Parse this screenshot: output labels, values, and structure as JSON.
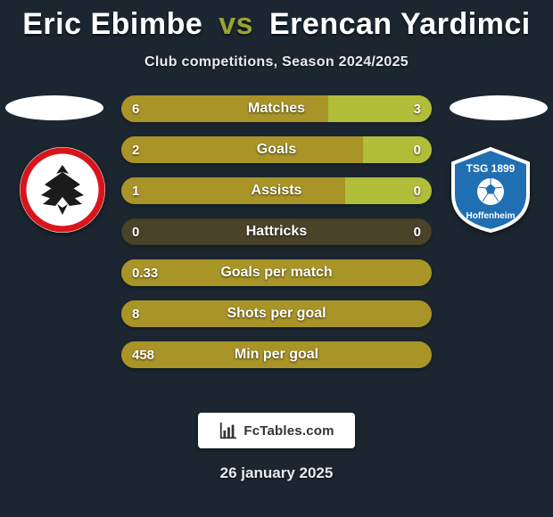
{
  "title": {
    "player1": "Eric Ebimbe",
    "vs": "vs",
    "player2": "Erencan Yardimci"
  },
  "subtitle": "Club competitions, Season 2024/2025",
  "branding_text": "FcTables.com",
  "date": "26 january 2025",
  "colors": {
    "background": "#1c2630",
    "bar_left": "#a99427",
    "bar_right": "#b1be3a",
    "vs": "#9aa235",
    "text": "#ffffff",
    "track_bg": "#49432a"
  },
  "crest_left": {
    "outer": "#ffffff",
    "ring": "#d8151c",
    "inner": "#ffffff",
    "eagle": "#1b1b1b"
  },
  "crest_right": {
    "shield_fill": "#1f6fb2",
    "shield_border": "#ffffff",
    "ball_fill": "#ffffff",
    "text": "#ffffff",
    "label_top": "TSG 1899",
    "label_bottom": "Hoffenheim"
  },
  "metrics": [
    {
      "label": "Matches",
      "left_val": "6",
      "right_val": "3",
      "left_pct": 66.7,
      "right_pct": 33.3
    },
    {
      "label": "Goals",
      "left_val": "2",
      "right_val": "0",
      "left_pct": 78,
      "right_pct": 22
    },
    {
      "label": "Assists",
      "left_val": "1",
      "right_val": "0",
      "left_pct": 72,
      "right_pct": 28
    },
    {
      "label": "Hattricks",
      "left_val": "0",
      "right_val": "0",
      "left_pct": 0,
      "right_pct": 0
    },
    {
      "label": "Goals per match",
      "left_val": "0.33",
      "right_val": "",
      "left_pct": 100,
      "right_pct": 0
    },
    {
      "label": "Shots per goal",
      "left_val": "8",
      "right_val": "",
      "left_pct": 100,
      "right_pct": 0
    },
    {
      "label": "Min per goal",
      "left_val": "458",
      "right_val": "",
      "left_pct": 100,
      "right_pct": 0
    }
  ]
}
